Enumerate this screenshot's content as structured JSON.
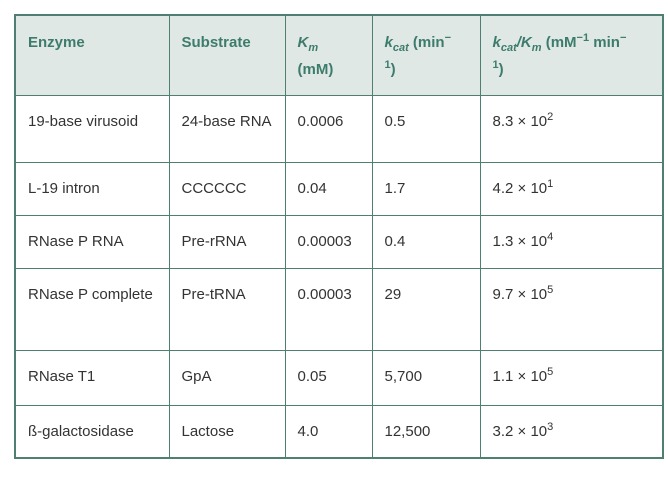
{
  "table": {
    "headers": {
      "enzyme": "Enzyme",
      "substrate": "Substrate",
      "km_sym": "K",
      "km_sub": "m",
      "km_unit": "(mM)",
      "kcat_sym": "k",
      "kcat_sub": "cat",
      "kcat_unit_a": " (min",
      "kcat_unit_sup_a": "−",
      "kcat_unit_sup_b": "1",
      "kcat_unit_b": ")",
      "ratio_k_sym": "k",
      "ratio_k_sub": "cat",
      "ratio_slash": "/",
      "ratio_K_sym": "K",
      "ratio_K_sub": "m",
      "ratio_unit_a": " (mM",
      "ratio_unit_sup": "−1",
      "ratio_unit_b": " min",
      "ratio_unit_sup2_a": "−",
      "ratio_unit_sup2_b": "1",
      "ratio_unit_c": ")"
    },
    "rows": [
      {
        "enzyme": "19-base virusoid",
        "substrate": "24-base RNA",
        "km": "0.0006",
        "kcat": "0.5",
        "ratio_base": "8.3 × 10",
        "ratio_exp": "2"
      },
      {
        "enzyme": "L-19 intron",
        "substrate": "CCCCCC",
        "km": "0.04",
        "kcat": "1.7",
        "ratio_base": "4.2 × 10",
        "ratio_exp": "1"
      },
      {
        "enzyme": "RNase P RNA",
        "substrate": "Pre-rRNA",
        "km": "0.00003",
        "kcat": "0.4",
        "ratio_base": "1.3 × 10",
        "ratio_exp": "4"
      },
      {
        "enzyme": "RNase P complete",
        "substrate": "Pre-tRNA",
        "km": "0.00003",
        "kcat": "29",
        "ratio_base": "9.7 × 10",
        "ratio_exp": "5"
      },
      {
        "enzyme": "RNase T1",
        "substrate": "GpA",
        "km": "0.05",
        "kcat": "5,700",
        "ratio_base": "1.1 × 10",
        "ratio_exp": "5"
      },
      {
        "enzyme": "ß-galactosidase",
        "substrate": "Lactose",
        "km": "4.0",
        "kcat": "12,500",
        "ratio_base": "3.2 × 10",
        "ratio_exp": "3"
      }
    ]
  },
  "colors": {
    "header_bg": "#dfe8e4",
    "header_text": "#3d7c6c",
    "border": "#4f7f72"
  }
}
